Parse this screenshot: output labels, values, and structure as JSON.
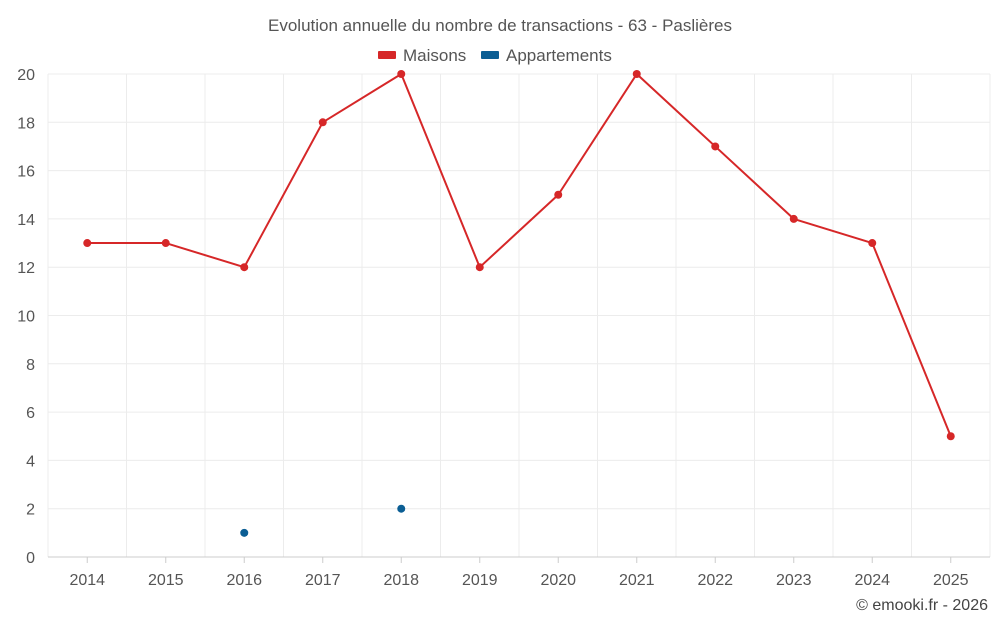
{
  "chart_data": {
    "type": "line",
    "title": "Evolution annuelle du nombre de transactions - 63 - Paslières",
    "categories": [
      "2014",
      "2015",
      "2016",
      "2017",
      "2018",
      "2019",
      "2020",
      "2021",
      "2022",
      "2023",
      "2024",
      "2025"
    ],
    "series": [
      {
        "name": "Maisons",
        "color": "#d62728",
        "values": [
          13,
          13,
          12,
          18,
          20,
          12,
          15,
          20,
          17,
          14,
          13,
          5
        ]
      },
      {
        "name": "Appartements",
        "color": "#0b5e94",
        "values": [
          null,
          null,
          1,
          null,
          2,
          null,
          null,
          null,
          null,
          null,
          null,
          null
        ]
      }
    ],
    "ylim": [
      0,
      20
    ],
    "yticks": [
      0,
      2,
      4,
      6,
      8,
      10,
      12,
      14,
      16,
      18,
      20
    ],
    "ytick_labels": [
      "0",
      "2",
      "4",
      "6",
      "8",
      "10",
      "12",
      "14",
      "16",
      "18",
      "20"
    ],
    "grid": true,
    "legend": "top-center",
    "credit": "© emooki.fr - 2026"
  }
}
